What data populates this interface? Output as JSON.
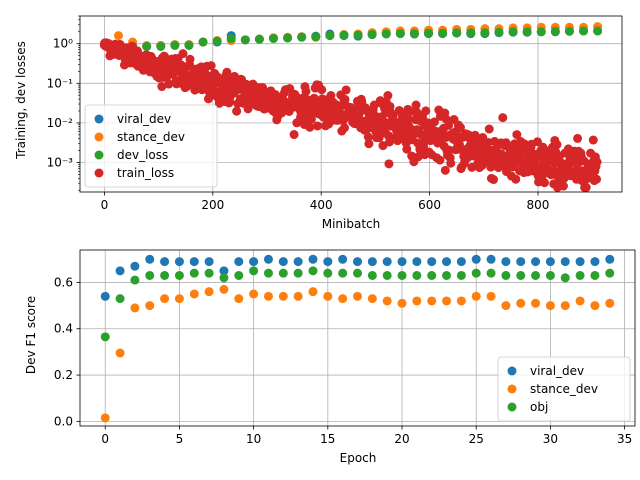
{
  "chart_data": [
    {
      "type": "scatter",
      "xlabel": "Minibatch",
      "ylabel": "Training, dev losses",
      "xlim": [
        -45,
        955
      ],
      "ylim": [
        0.00018,
        5
      ],
      "yscale": "log",
      "grid": true,
      "legend": "lower-left",
      "x_ticks": [
        0,
        200,
        400,
        600,
        800
      ],
      "x_tick_labels": [
        "0",
        "200",
        "400",
        "600",
        "800"
      ],
      "y_ticks": [
        0.001,
        0.01,
        0.1,
        1
      ],
      "y_tick_labels": [
        "10⁻³",
        "10⁻²",
        "10⁻¹",
        "10⁰"
      ],
      "series": [
        {
          "name": "viral_dev",
          "color": "#1f77b4",
          "points": [
            [
              0,
              1.0
            ],
            [
              26,
              0.9
            ],
            [
              52,
              0.9
            ],
            [
              78,
              0.85
            ],
            [
              104,
              0.9
            ],
            [
              130,
              0.95
            ],
            [
              156,
              0.95
            ],
            [
              182,
              1.1
            ],
            [
              208,
              1.1
            ],
            [
              234,
              1.6
            ],
            [
              260,
              1.25
            ],
            [
              286,
              1.3
            ],
            [
              312,
              1.4
            ],
            [
              338,
              1.4
            ],
            [
              364,
              1.5
            ],
            [
              390,
              1.55
            ],
            [
              416,
              1.75
            ],
            [
              442,
              1.6
            ],
            [
              468,
              1.55
            ],
            [
              494,
              1.7
            ],
            [
              520,
              1.8
            ],
            [
              546,
              1.8
            ],
            [
              572,
              1.75
            ],
            [
              598,
              1.8
            ],
            [
              624,
              1.8
            ],
            [
              650,
              1.85
            ],
            [
              676,
              1.8
            ],
            [
              702,
              1.8
            ],
            [
              728,
              1.9
            ],
            [
              754,
              1.95
            ],
            [
              780,
              1.95
            ],
            [
              806,
              2.0
            ],
            [
              832,
              2.0
            ],
            [
              858,
              2.1
            ],
            [
              884,
              2.1
            ],
            [
              910,
              2.1
            ]
          ]
        },
        {
          "name": "stance_dev",
          "color": "#ff7f0e",
          "points": [
            [
              0,
              1.0
            ],
            [
              26,
              1.6
            ],
            [
              52,
              1.1
            ],
            [
              78,
              0.9
            ],
            [
              104,
              0.9
            ],
            [
              130,
              0.95
            ],
            [
              156,
              0.95
            ],
            [
              182,
              1.1
            ],
            [
              208,
              1.2
            ],
            [
              234,
              1.2
            ],
            [
              260,
              1.25
            ],
            [
              286,
              1.3
            ],
            [
              312,
              1.4
            ],
            [
              338,
              1.45
            ],
            [
              364,
              1.5
            ],
            [
              390,
              1.45
            ],
            [
              416,
              1.6
            ],
            [
              442,
              1.7
            ],
            [
              468,
              1.75
            ],
            [
              494,
              1.9
            ],
            [
              520,
              2.0
            ],
            [
              546,
              2.1
            ],
            [
              572,
              2.1
            ],
            [
              598,
              2.2
            ],
            [
              624,
              2.2
            ],
            [
              650,
              2.3
            ],
            [
              676,
              2.3
            ],
            [
              702,
              2.4
            ],
            [
              728,
              2.4
            ],
            [
              754,
              2.5
            ],
            [
              780,
              2.5
            ],
            [
              806,
              2.6
            ],
            [
              832,
              2.6
            ],
            [
              858,
              2.6
            ],
            [
              884,
              2.6
            ],
            [
              910,
              2.7
            ]
          ]
        },
        {
          "name": "dev_loss",
          "color": "#2ca02c",
          "points": [
            [
              0,
              0.95
            ],
            [
              26,
              0.9
            ],
            [
              52,
              0.85
            ],
            [
              78,
              0.85
            ],
            [
              104,
              0.85
            ],
            [
              130,
              0.9
            ],
            [
              156,
              0.9
            ],
            [
              182,
              1.1
            ],
            [
              208,
              1.15
            ],
            [
              234,
              1.35
            ],
            [
              260,
              1.25
            ],
            [
              286,
              1.3
            ],
            [
              312,
              1.35
            ],
            [
              338,
              1.4
            ],
            [
              364,
              1.45
            ],
            [
              390,
              1.5
            ],
            [
              416,
              1.6
            ],
            [
              442,
              1.65
            ],
            [
              468,
              1.65
            ],
            [
              494,
              1.7
            ],
            [
              520,
              1.75
            ],
            [
              546,
              1.8
            ],
            [
              572,
              1.8
            ],
            [
              598,
              1.85
            ],
            [
              624,
              1.85
            ],
            [
              650,
              1.9
            ],
            [
              676,
              1.9
            ],
            [
              702,
              1.9
            ],
            [
              728,
              1.95
            ],
            [
              754,
              2.0
            ],
            [
              780,
              2.0
            ],
            [
              806,
              2.0
            ],
            [
              832,
              2.05
            ],
            [
              858,
              2.05
            ],
            [
              884,
              2.1
            ],
            [
              910,
              2.1
            ]
          ]
        },
        {
          "name": "train_loss",
          "color": "#d62728",
          "count": 910,
          "x_range": [
            0,
            909
          ],
          "trend_x": [
            0,
            50,
            100,
            200,
            300,
            400,
            500,
            600,
            700,
            800,
            900
          ],
          "trend_y": [
            1.0,
            0.5,
            0.25,
            0.09,
            0.04,
            0.022,
            0.012,
            0.005,
            0.0018,
            0.0009,
            0.0007
          ],
          "outliers": [
            [
              240,
              0.15
            ],
            [
              395,
              0.09
            ],
            [
              560,
              0.022
            ],
            [
              710,
              0.007
            ]
          ]
        }
      ]
    },
    {
      "type": "scatter",
      "xlabel": "Epoch",
      "ylabel": "Dev F1 score",
      "xlim": [
        -1.7,
        35.7
      ],
      "ylim": [
        -0.02,
        0.74
      ],
      "grid": true,
      "legend": "lower-right",
      "x_ticks": [
        0,
        5,
        10,
        15,
        20,
        25,
        30,
        35
      ],
      "x_tick_labels": [
        "0",
        "5",
        "10",
        "15",
        "20",
        "25",
        "30",
        "35"
      ],
      "y_ticks": [
        0.0,
        0.2,
        0.4,
        0.6
      ],
      "y_tick_labels": [
        "0.0",
        "0.2",
        "0.4",
        "0.6"
      ],
      "x": [
        0,
        1,
        2,
        3,
        4,
        5,
        6,
        7,
        8,
        9,
        10,
        11,
        12,
        13,
        14,
        15,
        16,
        17,
        18,
        19,
        20,
        21,
        22,
        23,
        24,
        25,
        26,
        27,
        28,
        29,
        30,
        31,
        32,
        33,
        34
      ],
      "series": [
        {
          "name": "viral_dev",
          "color": "#1f77b4",
          "values": [
            0.54,
            0.65,
            0.67,
            0.7,
            0.69,
            0.69,
            0.69,
            0.69,
            0.65,
            0.69,
            0.69,
            0.7,
            0.69,
            0.69,
            0.7,
            0.69,
            0.7,
            0.69,
            0.69,
            0.69,
            0.69,
            0.69,
            0.69,
            0.69,
            0.69,
            0.7,
            0.7,
            0.69,
            0.69,
            0.69,
            0.69,
            0.69,
            0.69,
            0.69,
            0.7
          ]
        },
        {
          "name": "stance_dev",
          "color": "#ff7f0e",
          "values": [
            0.015,
            0.295,
            0.49,
            0.5,
            0.53,
            0.53,
            0.55,
            0.56,
            0.57,
            0.53,
            0.55,
            0.54,
            0.54,
            0.54,
            0.56,
            0.54,
            0.53,
            0.54,
            0.53,
            0.52,
            0.51,
            0.52,
            0.52,
            0.52,
            0.52,
            0.54,
            0.54,
            0.5,
            0.51,
            0.51,
            0.5,
            0.5,
            0.52,
            0.5,
            0.51
          ]
        },
        {
          "name": "obj",
          "color": "#2ca02c",
          "values": [
            0.365,
            0.53,
            0.61,
            0.63,
            0.63,
            0.63,
            0.64,
            0.64,
            0.62,
            0.63,
            0.65,
            0.64,
            0.64,
            0.64,
            0.65,
            0.64,
            0.64,
            0.64,
            0.63,
            0.63,
            0.63,
            0.63,
            0.63,
            0.63,
            0.63,
            0.64,
            0.64,
            0.63,
            0.63,
            0.63,
            0.63,
            0.62,
            0.63,
            0.63,
            0.64
          ]
        }
      ]
    }
  ]
}
